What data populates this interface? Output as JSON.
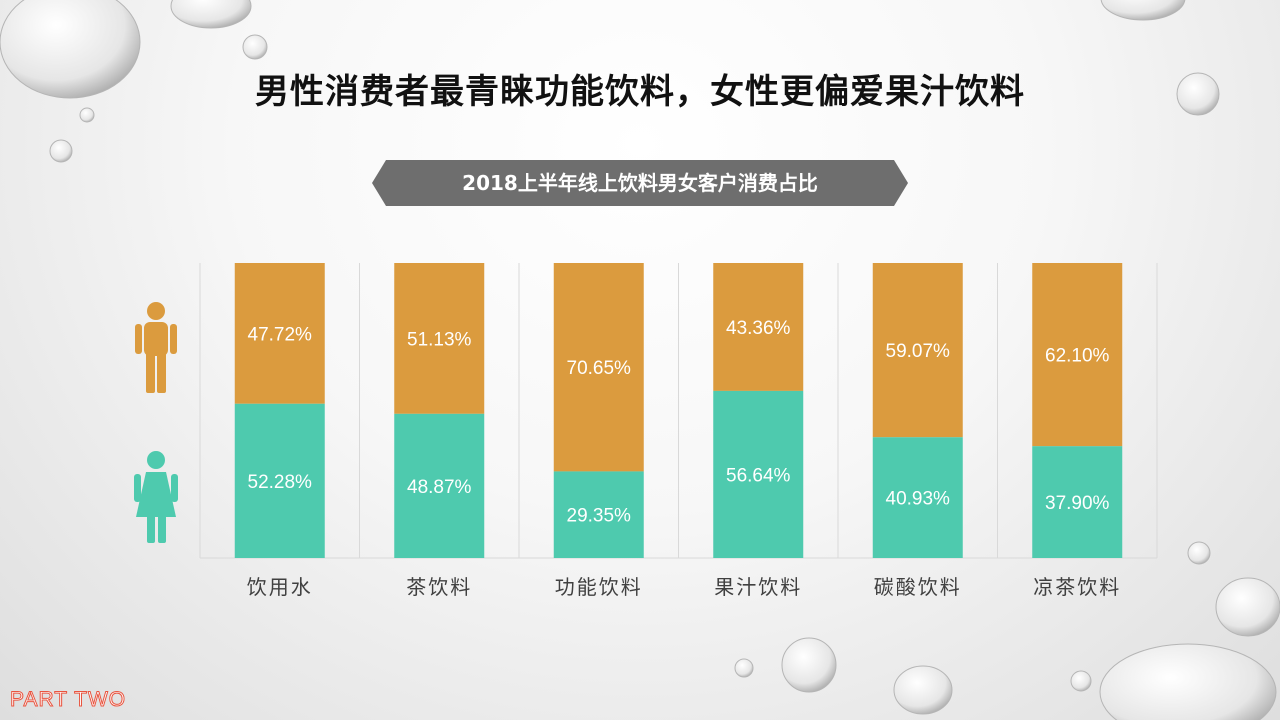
{
  "headline": "男性消费者最青睐功能饮料，女性更偏爱果汁饮料",
  "banner_title": "2018上半年线上饮料男女客户消费占比",
  "footer": "PART TWO",
  "colors": {
    "male": "#db9b3e",
    "female": "#4ecaae",
    "banner": "#6e6e6e"
  },
  "icons": {
    "male": "male-person-icon",
    "female": "female-person-icon"
  },
  "chart_data": {
    "type": "bar",
    "stacked": true,
    "categories": [
      "饮用水",
      "茶饮料",
      "功能饮料",
      "果汁饮料",
      "碳酸饮料",
      "凉茶饮料"
    ],
    "series": [
      {
        "key": "male",
        "values": [
          47.72,
          51.13,
          70.65,
          43.36,
          59.07,
          62.1
        ],
        "labels": [
          "47.72%",
          "51.13%",
          "70.65%",
          "43.36%",
          "59.07%",
          "62.10%"
        ]
      },
      {
        "key": "female",
        "values": [
          52.28,
          48.87,
          29.35,
          56.64,
          40.93,
          37.9
        ],
        "labels": [
          "52.28%",
          "48.87%",
          "29.35%",
          "56.64%",
          "40.93%",
          "37.90%"
        ]
      }
    ],
    "ylim": [
      0,
      100
    ],
    "grid": false,
    "legend": "left icons"
  }
}
